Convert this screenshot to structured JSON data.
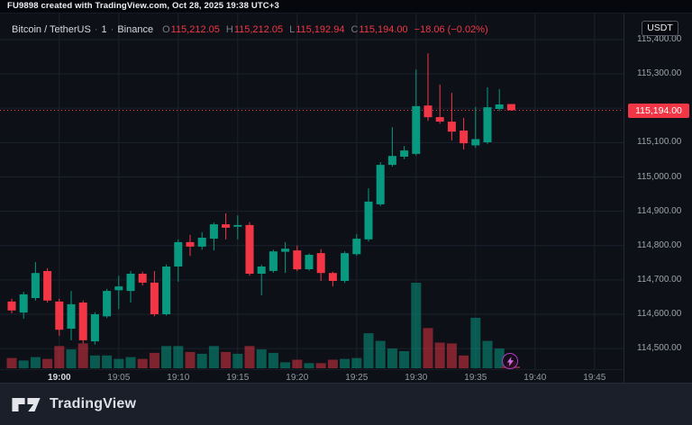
{
  "attribution": {
    "text": "FU9898 created with TradingView.com, Oct 28, 2025 19:38 UTC+3"
  },
  "symbol_bar": {
    "symbol": "Bitcoin / TetherUS",
    "separator": "·",
    "interval": "1",
    "exchange": "Binance",
    "ohlc": [
      {
        "label": "O",
        "value": "115,212.05"
      },
      {
        "label": "H",
        "value": "115,212.05"
      },
      {
        "label": "L",
        "value": "115,192.94"
      },
      {
        "label": "C",
        "value": "115,194.00"
      }
    ],
    "change": "−18.06 (−0.02%)"
  },
  "currency_button": {
    "label": "USDT"
  },
  "footer": {
    "brand": "TradingView"
  },
  "icons": {
    "boost": "lightning-bolt-icon",
    "logo": "tradingview-logo-mark"
  },
  "colors": {
    "background": "#0d1117",
    "top_bar_bg": "#05070c",
    "up": "#089981",
    "down": "#f23645",
    "up_volume": "rgba(8,153,129,0.55)",
    "down_volume": "rgba(242,54,69,0.5)",
    "grid": "#1c212c",
    "axis_text": "#9ca1ad",
    "price_line": "#f23645",
    "badge_bg": "#f23645",
    "badge_text": "#ffffff",
    "footer_bg": "#1b1f2a",
    "boost_ring": "#b13ac4",
    "boost_bolt": "#cf6fe0"
  },
  "chart_data": {
    "type": "candlestick",
    "title": "Bitcoin / TetherUS · 1 · Binance",
    "interval_minutes": 1,
    "grid": true,
    "layout": {
      "x_start": 13,
      "x_step": 13.2,
      "candle_w": 9,
      "wick_w": 1,
      "vol_w": 11,
      "vol_max_h": 95,
      "pane_h": 395,
      "pane_w": 692,
      "ylim": [
        114440,
        115476
      ]
    },
    "grid_prices": [
      115400,
      115300,
      115200,
      115100,
      115000,
      114900,
      114800,
      114700,
      114600,
      114500
    ],
    "price_labels": [
      {
        "price": 115400,
        "text": "115,400.00"
      },
      {
        "price": 115300,
        "text": "115,300.00"
      },
      {
        "price": 115100,
        "text": "115,100.00"
      },
      {
        "price": 115000,
        "text": "115,000.00"
      },
      {
        "price": 114900,
        "text": "114,900.00"
      },
      {
        "price": 114800,
        "text": "114,800.00"
      },
      {
        "price": 114700,
        "text": "114,700.00"
      },
      {
        "price": 114600,
        "text": "114,600.00"
      },
      {
        "price": 114500,
        "text": "114,500.00"
      }
    ],
    "time_ticks": [
      {
        "label": "19:00",
        "i": 4,
        "major": true
      },
      {
        "label": "19:05",
        "i": 9
      },
      {
        "label": "19:10",
        "i": 14
      },
      {
        "label": "19:15",
        "i": 19
      },
      {
        "label": "19:20",
        "i": 24
      },
      {
        "label": "19:25",
        "i": 29
      },
      {
        "label": "19:30",
        "i": 34
      },
      {
        "label": "19:35",
        "i": 39
      },
      {
        "label": "19:40",
        "i": 44
      },
      {
        "label": "19:45",
        "i": 49
      }
    ],
    "price_line": {
      "value": 115194,
      "label": "115,194.00"
    },
    "times": [
      "18:56",
      "18:57",
      "18:58",
      "18:59",
      "19:00",
      "19:01",
      "19:02",
      "19:03",
      "19:04",
      "19:05",
      "19:06",
      "19:07",
      "19:08",
      "19:09",
      "19:10",
      "19:11",
      "19:12",
      "19:13",
      "19:14",
      "19:15",
      "19:16",
      "19:17",
      "19:18",
      "19:19",
      "19:20",
      "19:21",
      "19:22",
      "19:23",
      "19:24",
      "19:25",
      "19:26",
      "19:27",
      "19:28",
      "19:29",
      "19:30",
      "19:31",
      "19:32",
      "19:33",
      "19:34",
      "19:35",
      "19:36",
      "19:37",
      "19:38"
    ],
    "ohlc": [
      [
        114637,
        114645,
        114603,
        114611
      ],
      [
        114605,
        114665,
        114587,
        114658
      ],
      [
        114647,
        114752,
        114640,
        114720
      ],
      [
        114726,
        114734,
        114634,
        114640
      ],
      [
        114637,
        114645,
        114537,
        114555
      ],
      [
        114558,
        114668,
        114524,
        114629
      ],
      [
        114634,
        114640,
        114515,
        114524
      ],
      [
        114521,
        114606,
        114512,
        114600
      ],
      [
        114594,
        114674,
        114589,
        114668
      ],
      [
        114670,
        114712,
        114615,
        114681
      ],
      [
        114668,
        114726,
        114634,
        114718
      ],
      [
        114718,
        114724,
        114684,
        114692
      ],
      [
        114692,
        114726,
        114594,
        114600
      ],
      [
        114600,
        114745,
        114596,
        114739
      ],
      [
        114739,
        114818,
        114695,
        114810
      ],
      [
        114810,
        114831,
        114770,
        114797
      ],
      [
        114797,
        114839,
        114788,
        114823
      ],
      [
        114820,
        114867,
        114786,
        114862
      ],
      [
        114862,
        114894,
        114818,
        114852
      ],
      [
        114855,
        114888,
        114818,
        114860
      ],
      [
        114860,
        114868,
        114712,
        114718
      ],
      [
        114718,
        114744,
        114655,
        114739
      ],
      [
        114726,
        114788,
        114721,
        114783
      ],
      [
        114782,
        114810,
        114720,
        114791
      ],
      [
        114786,
        114800,
        114726,
        114731
      ],
      [
        114731,
        114777,
        114727,
        114773
      ],
      [
        114778,
        114790,
        114697,
        114720
      ],
      [
        114720,
        114724,
        114681,
        114697
      ],
      [
        114697,
        114783,
        114691,
        114778
      ],
      [
        114775,
        114834,
        114770,
        114820
      ],
      [
        114818,
        114967,
        114812,
        114928
      ],
      [
        114920,
        115043,
        114915,
        115035
      ],
      [
        115035,
        115145,
        115030,
        115061
      ],
      [
        115059,
        115090,
        115052,
        115077
      ],
      [
        115067,
        115313,
        115062,
        115206
      ],
      [
        115208,
        115360,
        115163,
        115174
      ],
      [
        115174,
        115269,
        115155,
        115161
      ],
      [
        115161,
        115245,
        115106,
        115132
      ],
      [
        115135,
        115172,
        115080,
        115098
      ],
      [
        115092,
        115204,
        115085,
        115110
      ],
      [
        115101,
        115261,
        115096,
        115203
      ],
      [
        115198,
        115256,
        115192,
        115211
      ],
      [
        115212.05,
        115212.05,
        115192.94,
        115194.0
      ]
    ],
    "volume_rel": [
      0.12,
      0.09,
      0.13,
      0.11,
      0.26,
      0.22,
      0.29,
      0.15,
      0.15,
      0.11,
      0.13,
      0.11,
      0.18,
      0.26,
      0.26,
      0.19,
      0.17,
      0.26,
      0.19,
      0.17,
      0.26,
      0.22,
      0.18,
      0.07,
      0.1,
      0.06,
      0.06,
      0.1,
      0.11,
      0.12,
      0.41,
      0.32,
      0.23,
      0.2,
      1.0,
      0.47,
      0.3,
      0.29,
      0.15,
      0.59,
      0.32,
      0.23,
      0.08
    ]
  }
}
